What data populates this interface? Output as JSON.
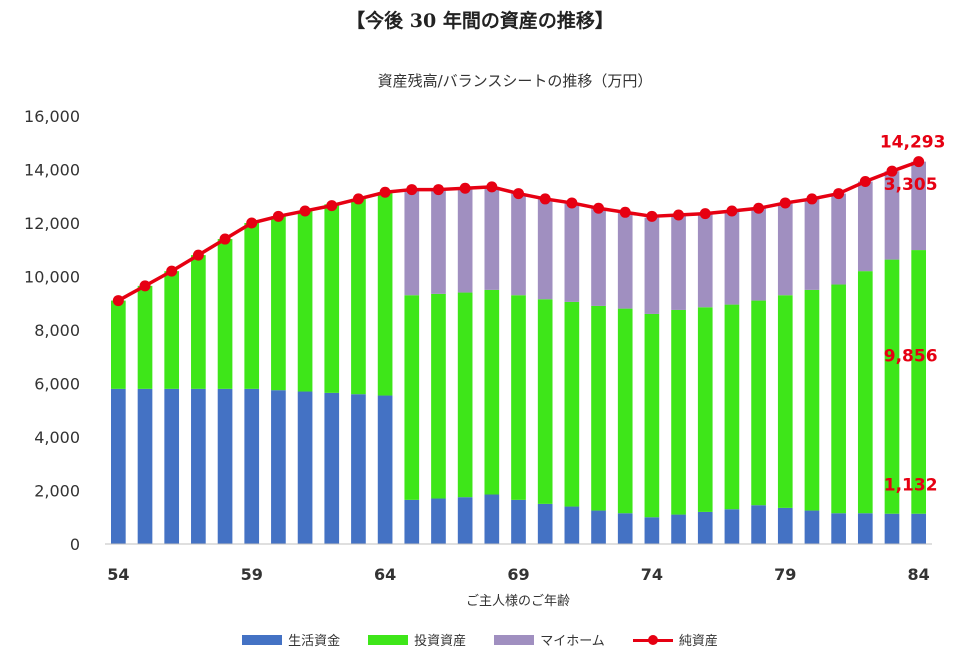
{
  "page_title": "【今後 30 年間の資産の推移】",
  "chart_data": {
    "type": "bar",
    "title": "資産残高/バランスシートの推移（万円）",
    "xlabel": "ご主人様のご年齢",
    "ylabel": "",
    "ylim": [
      0,
      16000
    ],
    "yticks": [
      "0",
      "2,000",
      "4,000",
      "6,000",
      "8,000",
      "10,000",
      "12,000",
      "14,000",
      "16,000"
    ],
    "x": [
      54,
      55,
      56,
      57,
      58,
      59,
      60,
      61,
      62,
      63,
      64,
      65,
      66,
      67,
      68,
      69,
      70,
      71,
      72,
      73,
      74,
      75,
      76,
      77,
      78,
      79,
      80,
      81,
      82,
      83,
      84
    ],
    "xtick_labels": [
      "54",
      "59",
      "64",
      "69",
      "74",
      "79",
      "84"
    ],
    "stacked": true,
    "series": [
      {
        "name": "生活資金",
        "kind": "bar",
        "color": "#4472c4",
        "values": [
          5800,
          5800,
          5800,
          5800,
          5800,
          5800,
          5750,
          5700,
          5650,
          5600,
          5550,
          1650,
          1700,
          1750,
          1850,
          1650,
          1500,
          1400,
          1250,
          1150,
          1000,
          1100,
          1200,
          1300,
          1450,
          1350,
          1250,
          1150,
          1150,
          1132,
          1132
        ]
      },
      {
        "name": "投資資産",
        "kind": "bar",
        "color": "#3ee619",
        "values": [
          3300,
          3850,
          4400,
          5000,
          5600,
          6200,
          6500,
          6750,
          7050,
          7300,
          7600,
          7650,
          7650,
          7650,
          7650,
          7650,
          7650,
          7650,
          7650,
          7650,
          7600,
          7650,
          7650,
          7650,
          7650,
          7950,
          8250,
          8550,
          9050,
          9500,
          9856
        ]
      },
      {
        "name": "マイホーム",
        "kind": "bar",
        "color": "#a08fc0",
        "values": [
          0,
          0,
          0,
          0,
          0,
          0,
          0,
          0,
          0,
          0,
          0,
          3950,
          3900,
          3900,
          3850,
          3800,
          3750,
          3700,
          3650,
          3600,
          3600,
          3550,
          3500,
          3500,
          3450,
          3450,
          3400,
          3400,
          3350,
          3305,
          3305
        ]
      },
      {
        "name": "純資産",
        "kind": "line",
        "color": "#e60012",
        "values": [
          9100,
          9650,
          10200,
          10800,
          11400,
          12000,
          12250,
          12450,
          12650,
          12900,
          13150,
          13250,
          13250,
          13300,
          13350,
          13100,
          12900,
          12750,
          12550,
          12400,
          12250,
          12300,
          12350,
          12450,
          12550,
          12750,
          12900,
          13100,
          13550,
          13937,
          14293
        ]
      }
    ],
    "data_labels": [
      "14,293",
      "3,305",
      "9,856",
      "1,132"
    ],
    "legend_position": "bottom",
    "grid": false
  }
}
